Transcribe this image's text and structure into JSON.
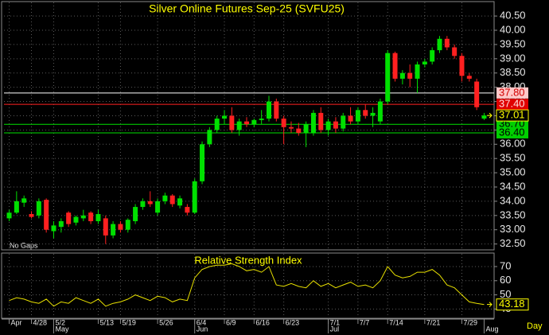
{
  "chart_data": [
    {
      "type": "candlestick",
      "title": "Silver Online Futures Sep-25 (SVFU25)",
      "note": "No Gaps",
      "up_color": "#00e000",
      "down_color": "#ff2020",
      "open": [
        33.4,
        33.6,
        33.95,
        33.55,
        33.5,
        34.05,
        32.95,
        33.1,
        33.6,
        33.25,
        33.4,
        33.6,
        33.3,
        33.4,
        32.8,
        33.2,
        33.0,
        33.3,
        33.8,
        34.0,
        33.6,
        34.0,
        34.2,
        33.85,
        33.8,
        33.6,
        34.7,
        36.0,
        36.5,
        36.9,
        37.0,
        36.5,
        36.8,
        36.7,
        36.85,
        36.9,
        37.5,
        36.9,
        36.6,
        36.55,
        36.4,
        36.4,
        37.1,
        36.5,
        36.8,
        36.55,
        37.0,
        36.8,
        37.2,
        37.0,
        36.8,
        37.5,
        39.2,
        38.3,
        38.5,
        38.3,
        38.8,
        38.9,
        39.3,
        39.7,
        39.4,
        39.1,
        38.4,
        38.2,
        36.9
      ],
      "high": [
        33.7,
        34.35,
        34.2,
        33.65,
        34.1,
        34.1,
        33.3,
        33.4,
        33.65,
        33.5,
        33.7,
        33.65,
        33.7,
        33.5,
        33.3,
        33.3,
        33.4,
        33.9,
        34.1,
        34.35,
        34.1,
        34.3,
        34.25,
        34.2,
        33.9,
        34.8,
        36.1,
        36.6,
        37.0,
        37.2,
        37.3,
        36.9,
        36.95,
        36.9,
        37.2,
        37.7,
        37.6,
        37.0,
        36.8,
        36.75,
        36.8,
        37.2,
        37.3,
        36.9,
        36.95,
        37.1,
        37.3,
        37.3,
        37.4,
        37.3,
        37.6,
        39.3,
        39.25,
        38.6,
        38.8,
        38.9,
        39.0,
        39.4,
        39.8,
        39.8,
        39.5,
        39.2,
        38.5,
        38.3,
        37.1
      ],
      "low": [
        33.3,
        33.55,
        33.8,
        33.4,
        33.4,
        32.9,
        32.7,
        32.9,
        33.1,
        33.15,
        33.3,
        33.2,
        33.2,
        32.5,
        32.7,
        32.9,
        32.9,
        33.2,
        33.7,
        33.8,
        33.5,
        33.9,
        33.8,
        33.75,
        33.5,
        33.55,
        34.6,
        35.9,
        36.4,
        36.7,
        36.4,
        36.3,
        36.6,
        36.6,
        36.7,
        36.8,
        36.8,
        36.0,
        36.4,
        36.3,
        35.9,
        36.3,
        36.4,
        36.3,
        36.4,
        36.45,
        36.7,
        36.7,
        36.9,
        36.6,
        36.7,
        37.4,
        38.2,
        38.1,
        38.0,
        37.8,
        38.7,
        38.8,
        39.2,
        39.3,
        39.0,
        38.2,
        38.2,
        37.2,
        36.85
      ],
      "close": [
        33.6,
        34.0,
        34.1,
        33.45,
        34.0,
        33.0,
        33.15,
        33.3,
        33.2,
        33.45,
        33.5,
        33.3,
        33.55,
        32.8,
        33.2,
        33.0,
        33.35,
        33.8,
        34.0,
        33.9,
        34.0,
        34.2,
        33.9,
        34.1,
        33.6,
        34.7,
        36.0,
        36.5,
        36.9,
        37.0,
        36.5,
        36.8,
        36.7,
        36.85,
        36.9,
        37.5,
        36.9,
        36.6,
        36.55,
        36.4,
        36.7,
        37.1,
        36.5,
        36.8,
        36.55,
        37.0,
        36.8,
        37.2,
        37.0,
        37.1,
        37.5,
        39.2,
        38.3,
        38.5,
        38.3,
        38.8,
        38.9,
        39.3,
        39.7,
        39.4,
        39.1,
        38.4,
        38.3,
        37.3,
        37.01
      ],
      "xlim": [
        -0.7,
        64.7
      ],
      "ylim": [
        32.35,
        40.95
      ],
      "yticks": [
        {
          "value": 32.5,
          "label": "32.50"
        },
        {
          "value": 33,
          "label": "33.00"
        },
        {
          "value": 33.5,
          "label": "33.50"
        },
        {
          "value": 34,
          "label": "34.00"
        },
        {
          "value": 34.5,
          "label": "34.50"
        },
        {
          "value": 35,
          "label": "35.00"
        },
        {
          "value": 35.5,
          "label": "35.50"
        },
        {
          "value": 36,
          "label": "36.00"
        },
        {
          "value": 36.5,
          "label": "36.50"
        },
        {
          "value": 37,
          "label": "37.00"
        },
        {
          "value": 37.5,
          "label": "37.50"
        },
        {
          "value": 38,
          "label": "38.00"
        },
        {
          "value": 38.5,
          "label": "38.50"
        },
        {
          "value": 39,
          "label": "39.00"
        },
        {
          "value": 39.5,
          "label": "39.50"
        },
        {
          "value": 40,
          "label": "40.00"
        },
        {
          "value": 40.5,
          "label": "40.50"
        }
      ],
      "levels": [
        {
          "value": 37.8,
          "label": "37.80",
          "color": "#ffffff",
          "bg": "#ffc8c8",
          "text_color": "#d00000"
        },
        {
          "value": 37.4,
          "label": "37.40",
          "color": "#ff2020",
          "bg": "#e00000",
          "text_color": "#ffe0e0"
        },
        {
          "value": 36.7,
          "label": "36.70",
          "color": "#00e000",
          "bg": "#00d000",
          "text_color": "#000000"
        },
        {
          "value": 36.4,
          "label": "36.40",
          "color": "#00e000",
          "bg": "#00d000",
          "text_color": "#000000"
        }
      ],
      "xticks": [
        {
          "value": 0,
          "label": "Apr"
        },
        {
          "value": 3,
          "label": "4/28"
        },
        {
          "value": 6,
          "label": "5/2"
        },
        {
          "value": 12,
          "label": "5/13"
        },
        {
          "value": 15,
          "label": "5/19"
        },
        {
          "value": 20,
          "label": "5/26"
        },
        {
          "value": 25,
          "label": "6/4"
        },
        {
          "value": 29,
          "label": "6/9"
        },
        {
          "value": 33,
          "label": "6/16"
        },
        {
          "value": 37,
          "label": "6/23"
        },
        {
          "value": 43,
          "label": "7/1"
        },
        {
          "value": 47,
          "label": "7/7"
        },
        {
          "value": 51,
          "label": "7/14"
        },
        {
          "value": 56,
          "label": "7/21"
        },
        {
          "value": 61,
          "label": "7/29"
        }
      ],
      "month_ticks": [
        {
          "value": 6,
          "label": "May"
        },
        {
          "value": 25,
          "label": "Jun"
        },
        {
          "value": 43,
          "label": "Jul"
        },
        {
          "value": 64,
          "label": "Aug"
        }
      ],
      "period": "Day",
      "grid": true
    },
    {
      "type": "line",
      "title": "Relative Strength Index",
      "color": "#e8e000",
      "values": [
        46,
        48,
        47,
        45,
        44,
        47,
        42,
        45,
        44,
        48,
        46,
        44,
        47,
        42,
        44,
        45,
        47,
        50,
        48,
        46,
        49,
        48,
        45,
        47,
        46,
        62,
        68,
        70,
        71,
        71,
        72,
        70,
        67,
        68,
        66,
        70,
        57,
        56,
        58,
        56,
        55,
        60,
        56,
        58,
        55,
        57,
        59,
        56,
        57,
        55,
        60,
        70,
        64,
        62,
        63,
        66,
        66,
        68,
        64,
        57,
        55,
        50,
        45,
        44,
        43.18
      ],
      "xlim": [
        -0.7,
        64.7
      ],
      "ylim": [
        34,
        79
      ],
      "yticks": [
        40,
        50,
        60,
        70
      ],
      "grid": true
    }
  ]
}
